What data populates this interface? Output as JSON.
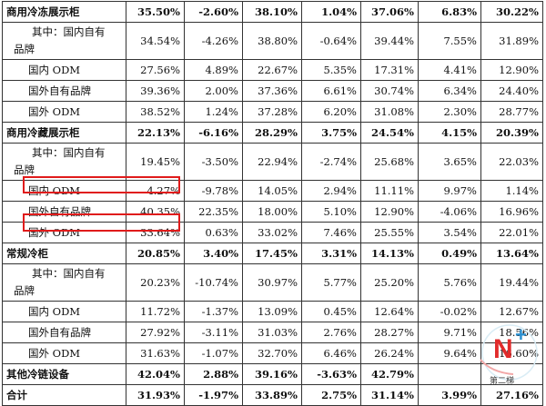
{
  "table": {
    "rows": [
      {
        "bold": true,
        "kind": "main",
        "label": "商用冷冻展示柜",
        "values": [
          "35.50%",
          "-2.60%",
          "38.10%",
          "1.04%",
          "37.06%",
          "6.83%",
          "30.22%"
        ]
      },
      {
        "bold": false,
        "kind": "wrap",
        "label_line1": "其中：国内自有",
        "label_line2": "品牌",
        "values": [
          "34.54%",
          "-4.26%",
          "38.80%",
          "-0.64%",
          "39.44%",
          "7.55%",
          "31.89%"
        ]
      },
      {
        "bold": false,
        "kind": "sub",
        "label": "国内 ODM",
        "values": [
          "27.56%",
          "4.89%",
          "22.67%",
          "5.35%",
          "17.31%",
          "4.41%",
          "12.90%"
        ]
      },
      {
        "bold": false,
        "kind": "sub",
        "label": "国外自有品牌",
        "values": [
          "39.36%",
          "2.00%",
          "37.36%",
          "6.61%",
          "30.74%",
          "6.34%",
          "24.40%"
        ]
      },
      {
        "bold": false,
        "kind": "sub",
        "label": "国外 ODM",
        "values": [
          "38.52%",
          "1.24%",
          "37.28%",
          "6.20%",
          "31.08%",
          "2.30%",
          "28.77%"
        ]
      },
      {
        "bold": true,
        "kind": "main",
        "label": "商用冷藏展示柜",
        "values": [
          "22.13%",
          "-6.16%",
          "28.29%",
          "3.75%",
          "24.54%",
          "4.15%",
          "20.39%"
        ]
      },
      {
        "bold": false,
        "kind": "wrap",
        "label_line1": "其中：国内自有",
        "label_line2": "品牌",
        "values": [
          "19.45%",
          "-3.50%",
          "22.94%",
          "-2.74%",
          "25.68%",
          "3.65%",
          "22.03%"
        ]
      },
      {
        "bold": false,
        "kind": "sub",
        "label": "国内 ODM",
        "values": [
          "4.27%",
          "-9.78%",
          "14.05%",
          "2.94%",
          "11.11%",
          "9.97%",
          "1.14%"
        ]
      },
      {
        "bold": false,
        "kind": "sub",
        "label": "国外自有品牌",
        "values": [
          "40.35%",
          "22.35%",
          "18.00%",
          "5.10%",
          "12.90%",
          "-4.06%",
          "16.96%"
        ]
      },
      {
        "bold": false,
        "kind": "sub",
        "label": "国外 ODM",
        "values": [
          "33.64%",
          "0.63%",
          "33.02%",
          "7.46%",
          "25.55%",
          "3.54%",
          "22.01%"
        ]
      },
      {
        "bold": true,
        "kind": "main",
        "label": "常规冷柜",
        "values": [
          "20.85%",
          "3.40%",
          "17.45%",
          "3.31%",
          "14.13%",
          "0.49%",
          "13.64%"
        ]
      },
      {
        "bold": false,
        "kind": "wrap",
        "label_line1": "其中：国内自有",
        "label_line2": "品牌",
        "values": [
          "20.23%",
          "-10.74%",
          "30.97%",
          "5.77%",
          "25.20%",
          "5.76%",
          "19.44%"
        ]
      },
      {
        "bold": false,
        "kind": "sub",
        "label": "国内 ODM",
        "values": [
          "11.72%",
          "-1.37%",
          "13.09%",
          "0.45%",
          "12.64%",
          "-0.02%",
          "12.67%"
        ]
      },
      {
        "bold": false,
        "kind": "sub",
        "label": "国外自有品牌",
        "values": [
          "27.92%",
          "-3.11%",
          "31.03%",
          "2.76%",
          "28.27%",
          "9.71%",
          "18.56%"
        ]
      },
      {
        "bold": false,
        "kind": "sub",
        "label": "国外 ODM",
        "values": [
          "31.63%",
          "-1.07%",
          "32.70%",
          "6.46%",
          "26.24%",
          "9.64%",
          "16.60%"
        ]
      },
      {
        "bold": true,
        "kind": "main",
        "label": "其他冷链设备",
        "values": [
          "42.04%",
          "2.88%",
          "39.16%",
          "-3.63%",
          "42.79%",
          "",
          ""
        ]
      },
      {
        "bold": true,
        "kind": "main",
        "label": "合计",
        "values": [
          "31.93%",
          "-1.97%",
          "33.89%",
          "2.75%",
          "31.14%",
          "3.99%",
          "27.16%"
        ]
      }
    ]
  },
  "highlight_color": "#e01b1b",
  "watermark": {
    "mark": "N+",
    "caption": "第二梯"
  }
}
